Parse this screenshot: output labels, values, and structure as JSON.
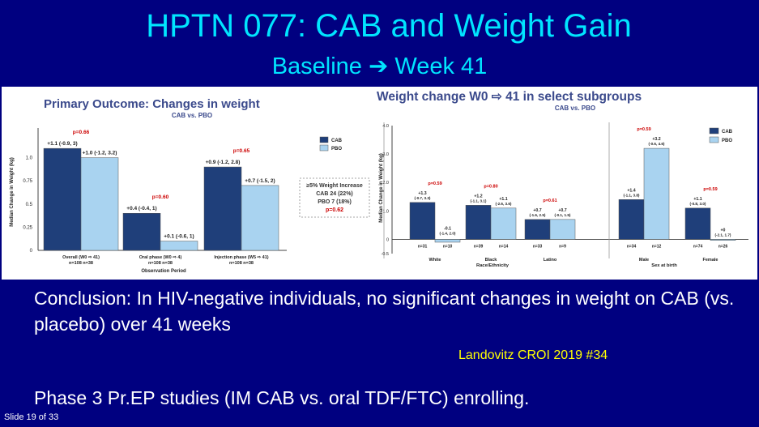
{
  "slide": {
    "title": "HPTN 077:  CAB and Weight Gain",
    "subtitle_start": "Baseline",
    "subtitle_arrow": "➔",
    "subtitle_end": "Week 41",
    "conclusion": "Conclusion:  In HIV-negative individuals, no significant changes in weight on CAB (vs. placebo) over 41 weeks",
    "citation": "Landovitz CROI 2019 #34",
    "phase3": "Phase 3 Pr.EP studies (IM CAB vs. oral TDF/FTC) enrolling.",
    "slide_number": "Slide 19 of 33"
  },
  "colors": {
    "cab": "#1f3f7a",
    "pbo": "#a9d3f0",
    "heading": "#3b4a8c",
    "pvalue": "#cc0000"
  },
  "chart_data": [
    {
      "type": "bar",
      "title": "Primary Outcome: Changes in weight",
      "subtitle": "CAB vs. PBO",
      "ylabel": "Median Change in Weight (kg)",
      "xlabel": "Observation Period",
      "ylim": [
        0,
        1.25
      ],
      "yticks": [
        "0",
        "0.25",
        "0.5",
        "0.75",
        "1.0"
      ],
      "ytick_values": [
        0,
        0.25,
        0.5,
        0.75,
        1.0
      ],
      "legend": [
        "CAB",
        "PBO"
      ],
      "categories": [
        "Overall (W0 ⇨ 41)",
        "Oral phase (W0 ⇨ 4)",
        "Injection phase (W5 ⇨ 41)"
      ],
      "ns": [
        "n=108   n=38",
        "n=108   n=38",
        "n=108   n=38"
      ],
      "pvalues": [
        "p=0.66",
        "p=0.60",
        "p=0.65"
      ],
      "series": [
        {
          "name": "CAB",
          "values": [
            1.1,
            0.4,
            0.9
          ],
          "labels": [
            "+1.1 (-0.9, 3)",
            "+0.4 (-0.4, 1)",
            "+0.9 (-1.2, 2.8)"
          ]
        },
        {
          "name": "PBO",
          "values": [
            1.0,
            0.1,
            0.7
          ],
          "labels": [
            "+1.0 (-1.2, 3.2)",
            "+0.1 (-0.6, 1)",
            "+0.7 (-1.5, 2)"
          ]
        }
      ],
      "note": [
        "≥5% Weight Increase",
        "CAB 24 (22%)",
        "PBO 7 (18%)",
        "p=0.62"
      ]
    },
    {
      "type": "bar",
      "title": "Weight change W0 ⇨ 41 in select subgroups",
      "subtitle": "CAB vs. PBO",
      "ylabel": "Median Change in Weight (kg)",
      "ylim": [
        -0.5,
        4.0
      ],
      "yticks": [
        "-0.5",
        "0",
        "1.0",
        "2.0",
        "3.0",
        "4.0"
      ],
      "ytick_values": [
        -0.5,
        0,
        1.0,
        2.0,
        3.0,
        4.0
      ],
      "legend": [
        "CAB",
        "PBO"
      ],
      "groups": [
        {
          "label": "Race/Ethnicity",
          "categories": [
            "White",
            "Black",
            "Latino"
          ],
          "pvalues": [
            "p=0.59",
            "p=0.80",
            "p=0.61"
          ],
          "cab": [
            1.3,
            1.2,
            0.7
          ],
          "pbo": [
            -0.1,
            1.1,
            0.7
          ],
          "cab_labels": [
            "+1.3 (-0.7, 3.3)",
            "+1.2 (-1.1, 3.1)",
            "+0.7 (-1.6, 2.5)"
          ],
          "pbo_labels": [
            "-0.1 (-1.4, 2.0)",
            "+1.1 (-2.6, 3.6)",
            "+0.7 (-0.1, 1.5)"
          ],
          "ns_cab": [
            "n=31",
            "n=39",
            "n=33"
          ],
          "ns_pbo": [
            "n=10",
            "n=14",
            "n=9"
          ]
        },
        {
          "label": "Sex at birth",
          "categories": [
            "Male",
            "Female"
          ],
          "pvalues": [
            "p=0.59",
            "p=0.59"
          ],
          "cab": [
            1.4,
            1.1
          ],
          "pbo": [
            3.2,
            0.0
          ],
          "cab_labels": [
            "+1.4 (-1.1, 3.8)",
            "+1.1 (-0.8, 3.0)"
          ],
          "pbo_labels": [
            "+3.2 (-0.6, 4.6)",
            "+0 (-2.1, 1.7)"
          ],
          "ns_cab": [
            "n=34",
            "n=74"
          ],
          "ns_pbo": [
            "n=12",
            "n=26"
          ]
        }
      ]
    }
  ]
}
